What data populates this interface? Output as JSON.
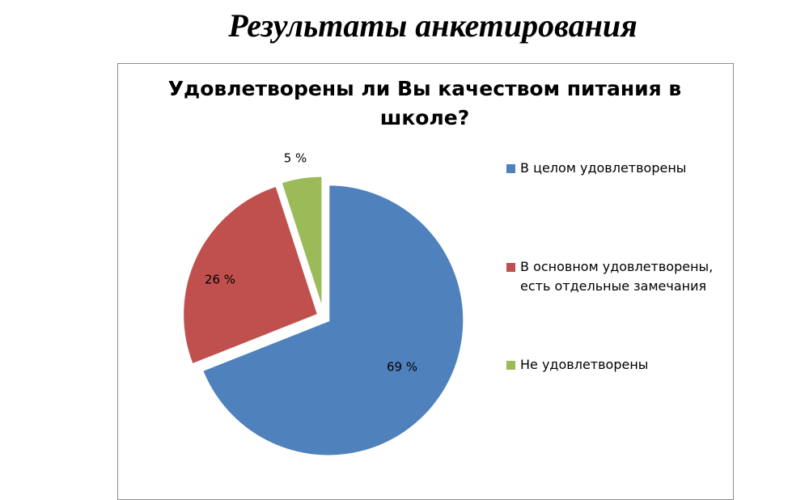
{
  "slide": {
    "title": "Результаты анкетирования"
  },
  "chart_data": {
    "type": "pie",
    "title_lines": [
      "Удовлетворены ли Вы качеством питания в",
      "школе?"
    ],
    "categories": [
      "В целом удовлетворены",
      "В основном удовлетворены, есть отдельные замечания",
      "Не удовлетворены"
    ],
    "legend_lines": [
      [
        "В целом удовлетворены"
      ],
      [
        "В основном удовлетворены,",
        "есть отдельные замечания"
      ],
      [
        "Не удовлетворены"
      ]
    ],
    "values": [
      69,
      26,
      5
    ],
    "labels": [
      "69 %",
      "26 %",
      "5 %"
    ],
    "colors": [
      "#4f81bd",
      "#c0504d",
      "#9bbb59"
    ],
    "legend_position": "right",
    "exploded": true
  }
}
